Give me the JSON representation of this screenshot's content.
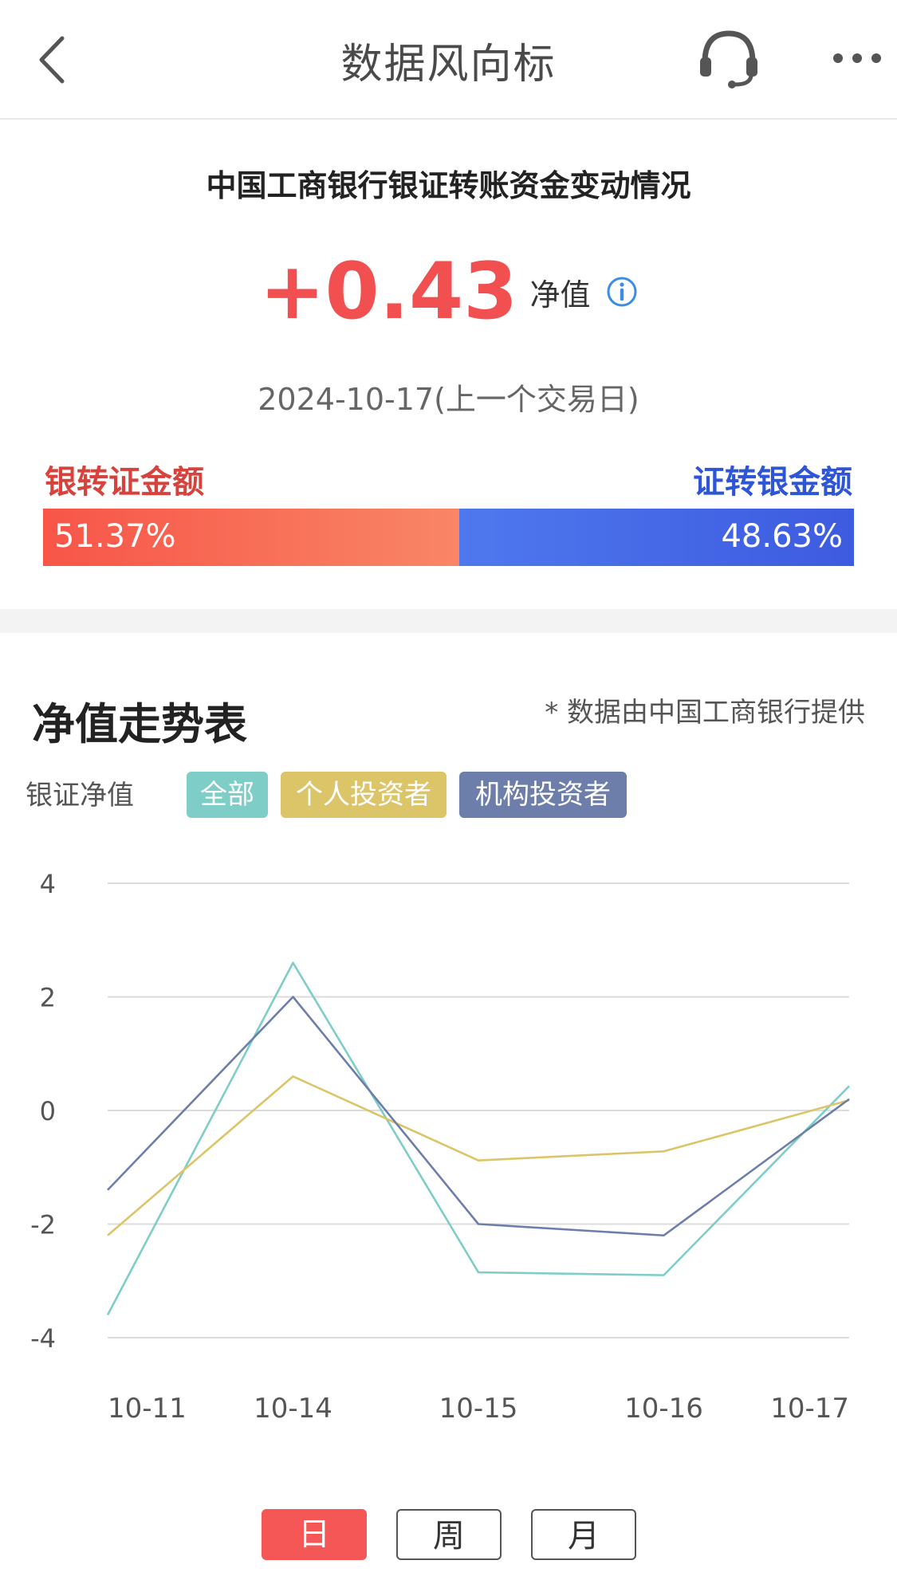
{
  "header": {
    "title": "数据风向标",
    "back_icon": "chevron-left-icon",
    "service_icon": "headset-icon",
    "more_icon": "more-dots-icon"
  },
  "summary": {
    "title": "中国工商银行银证转账资金变动情况",
    "net_value": "+0.43",
    "net_label": "净值",
    "date": "2024-10-17(上一个交易日)",
    "in_label": "银转证金额",
    "out_label": "证转银金额",
    "in_pct_text": "51.37%",
    "out_pct_text": "48.63%",
    "in_fraction": 0.5137,
    "colors": {
      "positive": "#f25050",
      "in": "#d8423c",
      "out": "#2d55d6"
    }
  },
  "trend": {
    "title": "净值走势表",
    "note": "* 数据由中国工商银行提供",
    "y_caption": "银证净值",
    "filters": [
      "全部",
      "个人投资者",
      "机构投资者"
    ],
    "periods": [
      "日",
      "周",
      "月"
    ],
    "active_period": "日"
  },
  "chart_data": {
    "type": "line",
    "categories": [
      "10-11",
      "10-14",
      "10-15",
      "10-16",
      "10-17"
    ],
    "ylim": [
      -4,
      4
    ],
    "yticks": [
      4,
      2,
      0,
      -2,
      -4
    ],
    "ytick_labels": [
      "4",
      "2",
      "0",
      "-2",
      "-4"
    ],
    "grid": true,
    "series": [
      {
        "name": "全部",
        "color": "#7ecdc6",
        "values": [
          -3.6,
          2.6,
          -2.85,
          -2.9,
          0.43
        ]
      },
      {
        "name": "个人投资者",
        "color": "#dcc468",
        "values": [
          -2.2,
          0.6,
          -0.88,
          -0.72,
          0.18
        ]
      },
      {
        "name": "机构投资者",
        "color": "#6c7ea9",
        "values": [
          -1.4,
          2.0,
          -2.0,
          -2.2,
          0.2
        ]
      }
    ]
  }
}
